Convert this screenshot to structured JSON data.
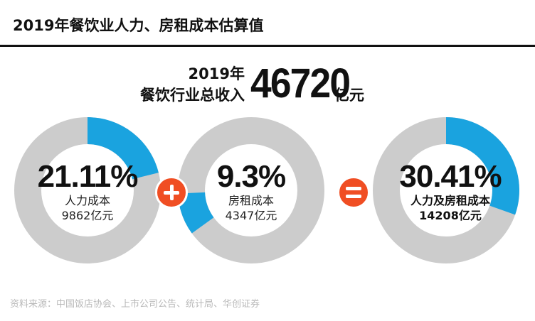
{
  "title": "2019年餐饮业人力、房租成本估算值",
  "headline": {
    "year": "2019年",
    "label": "餐饮行业总收入",
    "number": "46720",
    "unit": "亿元"
  },
  "colors": {
    "accent": "#1aa3df",
    "track": "#cccccc",
    "operator": "#f04e23"
  },
  "operators": [
    "plus-icon",
    "equals-icon"
  ],
  "chart_data": {
    "type": "pie",
    "variant": "donut",
    "total": 46720,
    "unit": "亿元",
    "series": [
      {
        "name": "人力成本",
        "percent": 21.11,
        "percent_label": "21.11%",
        "value": 9862,
        "value_label": "9862亿元"
      },
      {
        "name": "房租成本",
        "percent": 9.3,
        "percent_label": "9.3%",
        "value": 4347,
        "value_label": "4347亿元"
      },
      {
        "name": "人力及房租成本",
        "percent": 30.41,
        "percent_label": "30.41%",
        "value": 14208,
        "value_label": "14208亿元"
      }
    ]
  },
  "source": "资料来源：中国饭店协会、上市公司公告、统计局、华创证券"
}
